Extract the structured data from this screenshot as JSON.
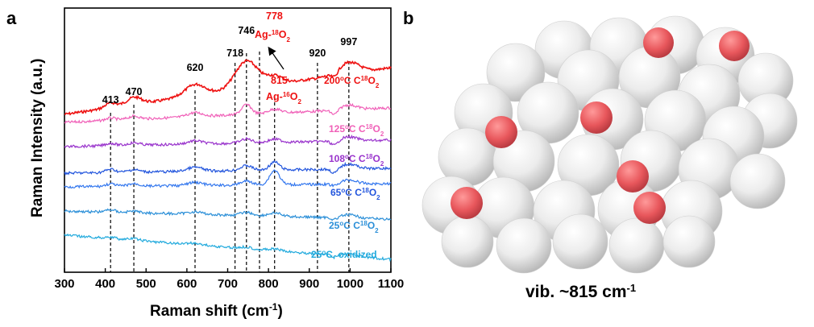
{
  "panels": {
    "a": "a",
    "b": "b"
  },
  "chart_data": {
    "type": "line",
    "xlabel_main": "Raman shift (cm",
    "xlabel_sup": "-1",
    "xlabel_end": ")",
    "ylabel": "Raman Intensity (a.u.)",
    "xlim": [
      300,
      1100
    ],
    "xticks": [
      "300",
      "400",
      "500",
      "600",
      "700",
      "800",
      "900",
      "1000",
      "1100"
    ],
    "grid": false,
    "dashed_lines": [
      413,
      470,
      620,
      718,
      746,
      778,
      815,
      920,
      997
    ],
    "peak_labels": [
      {
        "text": "413",
        "x": 413
      },
      {
        "text": "470",
        "x": 470
      },
      {
        "text": "620",
        "x": 620
      },
      {
        "text": "718",
        "x": 718
      },
      {
        "text": "746",
        "x": 746
      },
      {
        "text": "920",
        "x": 920
      },
      {
        "text": "997",
        "x": 997
      }
    ],
    "annotations": {
      "a778_num": "778",
      "a778_main": "Ag-",
      "a778_sup": "18",
      "a778_end": "O",
      "a778_sub": "2",
      "a815_num": "815",
      "a815_main": "Ag-",
      "a815_sup": "16",
      "a815_end": "O",
      "a815_sub": "2"
    },
    "series": [
      {
        "name_main": "200",
        "name_deg": "o",
        "name_mid": "C C",
        "name_sup": "18",
        "name_end": "O",
        "name_sub": "2",
        "color": "#ee1111",
        "baseline": 142,
        "peaks": [
          [
            413,
            6,
            14
          ],
          [
            470,
            9,
            18
          ],
          [
            620,
            14,
            25
          ],
          [
            746,
            34,
            28
          ],
          [
            815,
            10,
            20
          ],
          [
            997,
            14,
            25
          ]
        ],
        "slope": 58
      },
      {
        "name_main": "125",
        "name_deg": "o",
        "name_mid": "C C",
        "name_sup": "18",
        "name_end": "O",
        "name_sub": "2",
        "color": "#f060b8",
        "baseline": 152,
        "peaks": [
          [
            413,
            3,
            12
          ],
          [
            470,
            4,
            14
          ],
          [
            620,
            5,
            18
          ],
          [
            746,
            12,
            12
          ],
          [
            815,
            5,
            15
          ],
          [
            997,
            6,
            20
          ]
        ],
        "slope": 18
      },
      {
        "name_main": "108",
        "name_deg": "o",
        "name_mid": "C C",
        "name_sup": "18",
        "name_end": "O",
        "name_sub": "2",
        "color": "#9933cc",
        "baseline": 182,
        "peaks": [
          [
            413,
            3,
            12
          ],
          [
            470,
            3,
            14
          ],
          [
            620,
            4,
            18
          ],
          [
            746,
            5,
            14
          ],
          [
            815,
            4,
            15
          ],
          [
            997,
            5,
            20
          ]
        ],
        "slope": 8
      },
      {
        "name_main": "65",
        "name_deg": "o",
        "name_mid": "C C",
        "name_sup": "18",
        "name_end": "O",
        "name_sub": "2",
        "color": "#2255dd",
        "baseline": 215,
        "peaks": [
          [
            413,
            4,
            12
          ],
          [
            470,
            3,
            14
          ],
          [
            620,
            5,
            18
          ],
          [
            746,
            6,
            14
          ],
          [
            815,
            10,
            12
          ],
          [
            997,
            6,
            20
          ]
        ],
        "slope": 6
      },
      {
        "name_main": "65",
        "name_deg": "o",
        "name_mid": "C C",
        "name_sup": "18",
        "name_end": "O",
        "name_sub": "2",
        "color": "#3377ee",
        "baseline": 232,
        "peaks": [
          [
            413,
            3,
            12
          ],
          [
            470,
            3,
            14
          ],
          [
            620,
            4,
            18
          ],
          [
            746,
            5,
            14
          ],
          [
            815,
            18,
            12
          ],
          [
            997,
            5,
            20
          ]
        ],
        "slope": 4
      },
      {
        "name_main": "25",
        "name_deg": "o",
        "name_mid": "C C",
        "name_sup": "18",
        "name_end": "O",
        "name_sub": "2",
        "color": "#2b8fd8",
        "baseline": 262,
        "peaks": [
          [
            413,
            3,
            12
          ],
          [
            470,
            2,
            14
          ],
          [
            620,
            3,
            18
          ],
          [
            746,
            4,
            14
          ],
          [
            815,
            4,
            15
          ],
          [
            997,
            4,
            20
          ]
        ],
        "slope": -10
      },
      {
        "name_main": "25",
        "name_deg": "o",
        "name_mid": "C, oxidized",
        "name_sup": "",
        "name_end": "",
        "name_sub": "",
        "color": "#22aadd",
        "baseline": 292,
        "peaks": [
          [
            413,
            2,
            12
          ],
          [
            470,
            2,
            14
          ],
          [
            620,
            2,
            18
          ],
          [
            746,
            2,
            14
          ],
          [
            815,
            2,
            15
          ],
          [
            997,
            3,
            20
          ]
        ],
        "slope": -30
      }
    ]
  },
  "series_labels": [
    {
      "idx": 0,
      "main": "200",
      "mid": "C C",
      "sup": "18",
      "end": "O",
      "sub": "2",
      "color": "#ee1111"
    },
    {
      "idx": 1,
      "main": "125",
      "mid": "C C",
      "sup": "18",
      "end": "O",
      "sub": "2",
      "color": "#f060b8"
    },
    {
      "idx": 2,
      "main": "108",
      "mid": "C C",
      "sup": "18",
      "end": "O",
      "sub": "2",
      "color": "#9933cc"
    },
    {
      "idx": 3,
      "main": "65",
      "mid": "C C",
      "sup": "18",
      "end": "O",
      "sub": "2",
      "color": "#2255dd"
    },
    {
      "idx": 4,
      "main": "25",
      "mid": "C C",
      "sup": "18",
      "end": "O",
      "sub": "2",
      "color": "#2b8fd8"
    },
    {
      "idx": 5,
      "main": "25",
      "mid": "C, oxidized",
      "sup": "",
      "end": "",
      "sub": "",
      "color": "#22aadd"
    }
  ],
  "panel_b": {
    "vib_main": "vib. ~815 cm",
    "vib_sup": "-1",
    "sphere_color": "#e6e6e6",
    "oxygen_color": "#e8575c"
  }
}
